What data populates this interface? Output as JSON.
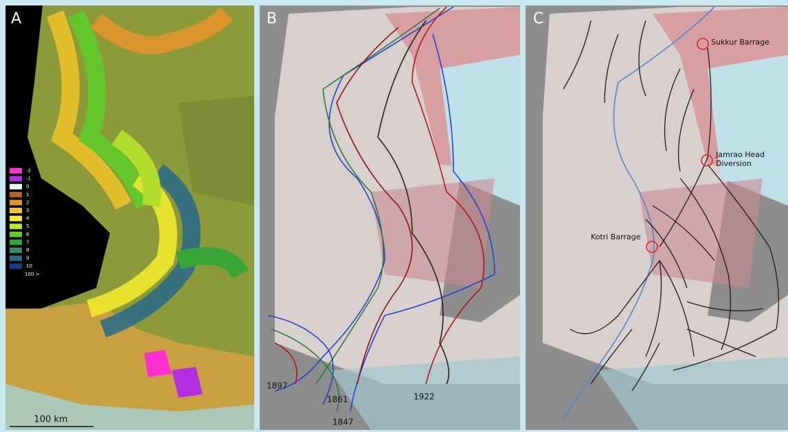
{
  "panels": [
    {
      "label": "A",
      "legend": [
        {
          "label": "-2",
          "color": "#ff2fd0"
        },
        {
          "label": "-1",
          "color": "#b22ee0"
        },
        {
          "label": "0",
          "color": "#e8f8ff"
        },
        {
          "label": "1",
          "color": "#b8602a"
        },
        {
          "label": "2",
          "color": "#e8932a"
        },
        {
          "label": "3",
          "color": "#f2c42a"
        },
        {
          "label": "4",
          "color": "#f6ee2a"
        },
        {
          "label": "5",
          "color": "#b8e82a"
        },
        {
          "label": "6",
          "color": "#5cd02a"
        },
        {
          "label": "7",
          "color": "#2aa83a"
        },
        {
          "label": "8",
          "color": "#2a8a6a"
        },
        {
          "label": "9",
          "color": "#2a6a8a"
        },
        {
          "label": "10",
          "color": "#1a3a8a"
        },
        {
          "label": "100 >",
          "color": null
        }
      ],
      "scale_bar": "100 km"
    },
    {
      "label": "B",
      "years": [
        "1897",
        "1861",
        "1847",
        "1922"
      ]
    },
    {
      "label": "C",
      "annotations": [
        [
          "Sukkur Barrage"
        ],
        [
          "Jamrao Head",
          "Diversion"
        ],
        [
          "Kotri Barrage"
        ]
      ]
    }
  ]
}
